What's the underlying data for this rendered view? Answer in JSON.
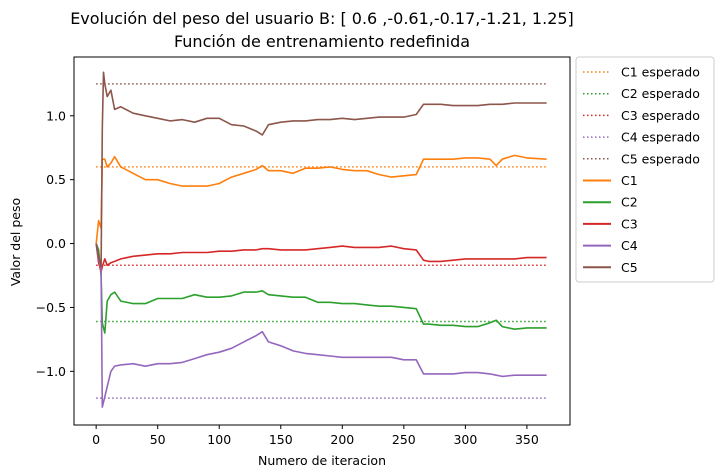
{
  "chart_data": {
    "type": "line",
    "title": "Evolución del peso del usuario B: [ 0.6 ,-0.61,-0.17,-1.21, 1.25]",
    "subtitle": "Función de entrenamiento redefinida",
    "xlabel": "Numero de iteracion",
    "ylabel": "Valor del peso",
    "xlim": [
      -18,
      385
    ],
    "ylim": [
      -1.42,
      1.46
    ],
    "xticks": [
      0,
      50,
      100,
      150,
      200,
      250,
      300,
      350
    ],
    "yticks": [
      -1.0,
      -0.5,
      0.0,
      0.5,
      1.0
    ],
    "xtick_labels": [
      "0",
      "50",
      "100",
      "150",
      "200",
      "250",
      "300",
      "350"
    ],
    "ytick_labels": [
      "−1.0",
      "−0.5",
      "0.0",
      "0.5",
      "1.0"
    ],
    "grid": false,
    "legend_position": "outside-right-top",
    "reference_lines": [
      {
        "name": "C1 esperado",
        "value": 0.6,
        "color": "#ff7f0e",
        "x": [
          0,
          366
        ]
      },
      {
        "name": "C2 esperado",
        "value": -0.61,
        "color": "#2ca02c",
        "x": [
          0,
          366
        ]
      },
      {
        "name": "C3 esperado",
        "value": -0.17,
        "color": "#d62728",
        "x": [
          0,
          366
        ]
      },
      {
        "name": "C4 esperado",
        "value": -1.21,
        "color": "#9467bd",
        "x": [
          0,
          366
        ]
      },
      {
        "name": "C5 esperado",
        "value": 1.25,
        "color": "#8c564b",
        "x": [
          0,
          366
        ]
      }
    ],
    "series": [
      {
        "name": "C1",
        "color": "#ff7f0e",
        "x": [
          0,
          2,
          4,
          5,
          7,
          9,
          12,
          15,
          20,
          30,
          40,
          50,
          60,
          70,
          80,
          90,
          100,
          110,
          120,
          130,
          135,
          140,
          150,
          160,
          170,
          180,
          190,
          200,
          210,
          220,
          230,
          240,
          250,
          260,
          266,
          270,
          280,
          290,
          300,
          310,
          320,
          325,
          330,
          340,
          350,
          366
        ],
        "values": [
          0.0,
          0.18,
          0.12,
          0.66,
          0.66,
          0.6,
          0.63,
          0.68,
          0.6,
          0.55,
          0.5,
          0.5,
          0.47,
          0.45,
          0.45,
          0.45,
          0.47,
          0.52,
          0.55,
          0.58,
          0.61,
          0.57,
          0.57,
          0.55,
          0.59,
          0.59,
          0.6,
          0.58,
          0.57,
          0.57,
          0.54,
          0.52,
          0.53,
          0.54,
          0.66,
          0.66,
          0.66,
          0.66,
          0.67,
          0.67,
          0.66,
          0.61,
          0.66,
          0.69,
          0.67,
          0.66
        ]
      },
      {
        "name": "C2",
        "color": "#2ca02c",
        "x": [
          0,
          2,
          4,
          5,
          7,
          9,
          12,
          15,
          20,
          30,
          40,
          50,
          60,
          70,
          80,
          90,
          100,
          110,
          120,
          130,
          135,
          140,
          150,
          160,
          170,
          180,
          190,
          200,
          210,
          220,
          230,
          240,
          250,
          260,
          266,
          270,
          280,
          290,
          300,
          310,
          320,
          325,
          330,
          340,
          350,
          366
        ],
        "values": [
          0.0,
          -0.05,
          -0.25,
          -0.62,
          -0.7,
          -0.45,
          -0.4,
          -0.38,
          -0.45,
          -0.47,
          -0.47,
          -0.43,
          -0.43,
          -0.43,
          -0.4,
          -0.42,
          -0.42,
          -0.41,
          -0.38,
          -0.38,
          -0.37,
          -0.4,
          -0.41,
          -0.42,
          -0.42,
          -0.46,
          -0.46,
          -0.47,
          -0.47,
          -0.48,
          -0.49,
          -0.49,
          -0.5,
          -0.51,
          -0.63,
          -0.63,
          -0.64,
          -0.64,
          -0.65,
          -0.65,
          -0.62,
          -0.6,
          -0.65,
          -0.67,
          -0.66,
          -0.66
        ]
      },
      {
        "name": "C3",
        "color": "#d62728",
        "x": [
          0,
          2,
          4,
          5,
          7,
          9,
          12,
          15,
          20,
          30,
          40,
          50,
          60,
          70,
          80,
          90,
          100,
          110,
          120,
          130,
          135,
          140,
          150,
          160,
          170,
          180,
          190,
          200,
          210,
          220,
          230,
          240,
          250,
          260,
          266,
          270,
          280,
          290,
          300,
          310,
          320,
          325,
          330,
          340,
          350,
          366
        ],
        "values": [
          0.0,
          -0.15,
          -0.22,
          -0.18,
          -0.12,
          -0.17,
          -0.15,
          -0.14,
          -0.12,
          -0.1,
          -0.09,
          -0.08,
          -0.08,
          -0.07,
          -0.07,
          -0.07,
          -0.06,
          -0.06,
          -0.05,
          -0.05,
          -0.04,
          -0.04,
          -0.05,
          -0.05,
          -0.05,
          -0.04,
          -0.03,
          -0.02,
          -0.03,
          -0.03,
          -0.03,
          -0.02,
          -0.04,
          -0.05,
          -0.13,
          -0.14,
          -0.14,
          -0.13,
          -0.12,
          -0.12,
          -0.12,
          -0.12,
          -0.12,
          -0.12,
          -0.11,
          -0.11
        ]
      },
      {
        "name": "C4",
        "color": "#9467bd",
        "x": [
          0,
          2,
          4,
          5,
          7,
          9,
          12,
          15,
          20,
          30,
          40,
          50,
          60,
          70,
          80,
          90,
          100,
          110,
          120,
          130,
          135,
          140,
          150,
          160,
          170,
          180,
          190,
          200,
          210,
          220,
          230,
          240,
          250,
          260,
          266,
          270,
          280,
          290,
          300,
          310,
          320,
          325,
          330,
          340,
          350,
          366
        ],
        "values": [
          0.0,
          -0.12,
          -0.2,
          -1.28,
          -1.2,
          -1.12,
          -1.0,
          -0.96,
          -0.95,
          -0.94,
          -0.96,
          -0.94,
          -0.94,
          -0.93,
          -0.9,
          -0.87,
          -0.85,
          -0.82,
          -0.77,
          -0.72,
          -0.69,
          -0.77,
          -0.8,
          -0.84,
          -0.86,
          -0.87,
          -0.88,
          -0.89,
          -0.89,
          -0.89,
          -0.89,
          -0.89,
          -0.91,
          -0.91,
          -1.02,
          -1.02,
          -1.02,
          -1.02,
          -1.01,
          -1.01,
          -1.02,
          -1.03,
          -1.04,
          -1.03,
          -1.03,
          -1.03
        ]
      },
      {
        "name": "C5",
        "color": "#8c564b",
        "x": [
          0,
          2,
          4,
          5,
          6,
          7,
          9,
          12,
          15,
          20,
          30,
          40,
          50,
          60,
          70,
          80,
          90,
          100,
          110,
          120,
          130,
          135,
          140,
          150,
          160,
          170,
          180,
          190,
          200,
          210,
          220,
          230,
          240,
          250,
          260,
          266,
          270,
          280,
          290,
          300,
          310,
          320,
          325,
          330,
          340,
          350,
          366
        ],
        "values": [
          0.0,
          -0.1,
          -0.18,
          0.9,
          1.34,
          1.25,
          1.15,
          1.2,
          1.05,
          1.07,
          1.02,
          1.0,
          0.98,
          0.96,
          0.97,
          0.95,
          0.98,
          0.98,
          0.93,
          0.92,
          0.88,
          0.85,
          0.93,
          0.95,
          0.96,
          0.96,
          0.97,
          0.97,
          0.98,
          0.97,
          0.98,
          0.99,
          0.99,
          0.99,
          1.01,
          1.09,
          1.09,
          1.09,
          1.08,
          1.08,
          1.08,
          1.09,
          1.09,
          1.09,
          1.1,
          1.1,
          1.1
        ]
      }
    ]
  }
}
